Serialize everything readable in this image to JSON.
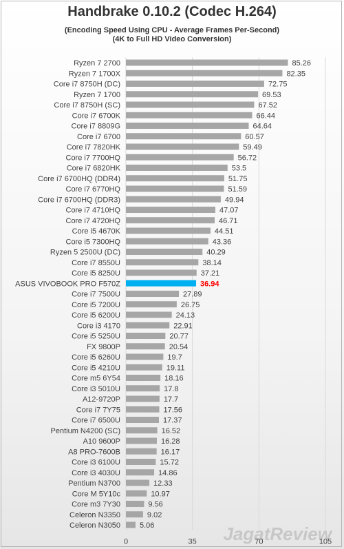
{
  "title": "Handbrake 0.10.2 (Codec H.264)",
  "subtitle1": "(Encoding Speed Using CPU - Average Frames Per-Second)",
  "subtitle2": "(4K to Full HD Video Conversion)",
  "watermark": "JagatReview",
  "colors": {
    "bar": "#a6a6a6",
    "highlight_bar": "#00b0f0",
    "highlight_value": "#ff0000",
    "text": "#404040",
    "grid": "#d9d9d9"
  },
  "chart_data": {
    "type": "bar",
    "orientation": "horizontal",
    "xlim": [
      0,
      105
    ],
    "xticks": [
      0,
      35,
      70,
      105
    ],
    "grid": true,
    "highlight": "ASUS VIVOBOOK PRO F570Z",
    "categories": [
      "Ryzen 7 2700",
      "Ryzen 7 1700X",
      "Core i7 8750H (DC)",
      "Ryzen 7 1700",
      "Core i7 8750H (SC)",
      "Core i7 6700K",
      "Core i7 8809G",
      "Core i7 6700",
      "Core i7 7820HK",
      "Core i7 7700HQ",
      "Core i7 6820HK",
      "Core i7 6700HQ (DDR4)",
      "Core i7 6770HQ",
      "Core i7 6700HQ (DDR3)",
      "Core i7 4710HQ",
      "Core i7 4720HQ",
      "Core i5 4670K",
      "Core i5 7300HQ",
      "Ryzen 5 2500U (DC)",
      "Core i7 8550U",
      "Core i5 8250U",
      "ASUS VIVOBOOK PRO F570Z",
      "Core i7 7500U",
      "Core i5 7200U",
      "Core i5 6200U",
      "Core i3 4170",
      "Core i5 5250U",
      "FX 9800P",
      "Core i5 6260U",
      "Core i5 4210U",
      "Core m5 6Y54",
      "Core i3 5010U",
      "A12-9720P",
      "Core i7 7Y75",
      "Core i7 6500U",
      "Pentium N4200 (SC)",
      "A10 9600P",
      "A8 PRO-7600B",
      "Core i3 6100U",
      "Core i3 4030U",
      "Pentium N3700",
      "Core M 5Y10c",
      "Core m3 7Y30",
      "Celeron N3350",
      "Celeron N3050"
    ],
    "values": [
      85.26,
      82.35,
      72.75,
      69.53,
      67.52,
      66.44,
      64.64,
      60.57,
      59.49,
      56.72,
      53.5,
      51.75,
      51.59,
      49.94,
      47.07,
      46.71,
      44.51,
      43.36,
      40.29,
      38.14,
      37.21,
      36.94,
      27.89,
      26.75,
      24.13,
      22.91,
      20.77,
      20.54,
      19.7,
      19.11,
      18.16,
      17.8,
      17.7,
      17.56,
      17.37,
      16.52,
      16.28,
      16.17,
      15.72,
      14.86,
      12.33,
      10.97,
      9.56,
      9.02,
      5.06
    ],
    "value_labels": [
      "85.26",
      "82.35",
      "72.75",
      "69.53",
      "67.52",
      "66.44",
      "64.64",
      "60.57",
      "59.49",
      "56.72",
      "53.5",
      "51.75",
      "51.59",
      "49.94",
      "47.07",
      "46.71",
      "44.51",
      "43.36",
      "40.29",
      "38.14",
      "37.21",
      "36.94",
      "27.89",
      "26.75",
      "24.13",
      "22.91",
      "20.77",
      "20.54",
      "19.7",
      "19.11",
      "18.16",
      "17.8",
      "17.7",
      "17.56",
      "17.37",
      "16.52",
      "16.28",
      "16.17",
      "15.72",
      "14.86",
      "12.33",
      "10.97",
      "9.56",
      "9.02",
      "5.06"
    ]
  }
}
